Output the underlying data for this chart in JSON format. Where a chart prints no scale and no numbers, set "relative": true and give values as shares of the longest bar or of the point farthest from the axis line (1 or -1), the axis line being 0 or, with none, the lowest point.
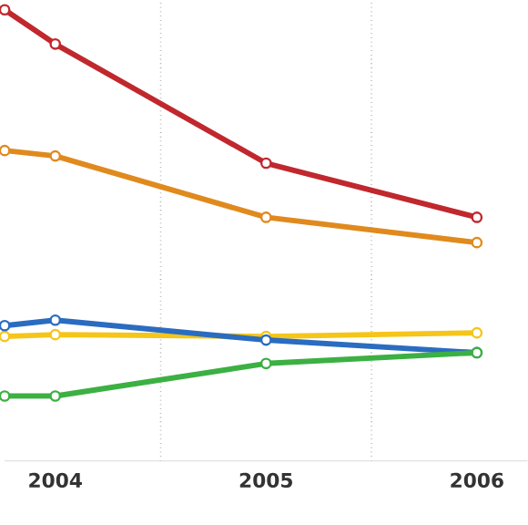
{
  "chart_data": {
    "type": "line",
    "relative": true,
    "marker": "circle",
    "line_style": "solid",
    "grid": "x",
    "xlim": [
      2003.76,
      2006.24
    ],
    "xticks": [
      2004,
      {
        "value": 2004.5,
        "label": null
      },
      2005,
      {
        "value": 2005.5,
        "label": null
      },
      2006
    ],
    "series": [
      {
        "color": "#c0282d",
        "x": [
          2003.76,
          2004,
          2005,
          2006
        ],
        "values": [
          1.0,
          0.924,
          0.66,
          0.54
        ]
      },
      {
        "color": "#e08a1e",
        "x": [
          2003.76,
          2004,
          2005,
          2006
        ],
        "values": [
          0.688,
          0.676,
          0.54,
          0.484
        ]
      },
      {
        "color": "#f5c518",
        "x": [
          2003.76,
          2004,
          2005,
          2006
        ],
        "values": [
          0.276,
          0.28,
          0.276,
          0.284
        ]
      },
      {
        "color": "#2a6cc0",
        "x": [
          2003.76,
          2004,
          2005,
          2006
        ],
        "values": [
          0.3,
          0.312,
          0.268,
          0.24
        ]
      },
      {
        "color": "#3cb043",
        "x": [
          2003.76,
          2004,
          2005,
          2006
        ],
        "values": [
          0.144,
          0.144,
          0.216,
          0.24
        ]
      }
    ]
  }
}
